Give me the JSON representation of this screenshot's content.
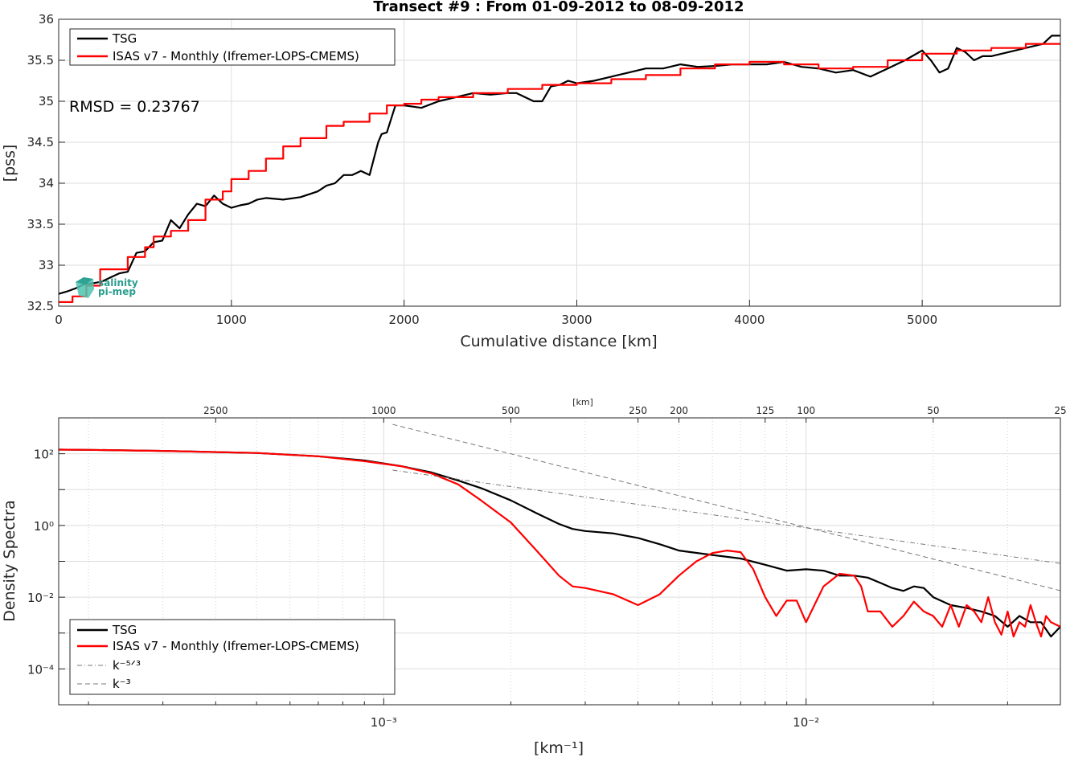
{
  "chart_data": [
    {
      "type": "line",
      "title": "Transect #9 : From 01-09-2012 to 08-09-2012",
      "xlabel": "Cumulative distance [km]",
      "ylabel": "[pss]",
      "xlim": [
        0,
        5800
      ],
      "ylim": [
        32.5,
        36
      ],
      "xticks": [
        0,
        1000,
        2000,
        3000,
        4000,
        5000
      ],
      "yticks": [
        32.5,
        33,
        33.5,
        34,
        34.5,
        35,
        35.5,
        36
      ],
      "grid": true,
      "legend_position": "top-left",
      "annotation": "RMSD = 0.23767",
      "logo_text": [
        "salinity",
        "pi-mep"
      ],
      "series": [
        {
          "name": "TSG",
          "color": "#000000",
          "x": [
            0,
            50,
            100,
            150,
            200,
            250,
            300,
            350,
            400,
            450,
            500,
            550,
            600,
            650,
            700,
            750,
            800,
            850,
            900,
            950,
            1000,
            1050,
            1100,
            1150,
            1200,
            1300,
            1400,
            1500,
            1550,
            1600,
            1650,
            1700,
            1750,
            1800,
            1850,
            1870,
            1900,
            1950,
            2000,
            2100,
            2200,
            2300,
            2400,
            2500,
            2600,
            2650,
            2700,
            2750,
            2800,
            2850,
            2900,
            2950,
            3000,
            3100,
            3200,
            3300,
            3400,
            3500,
            3600,
            3700,
            3800,
            3900,
            4000,
            4100,
            4200,
            4300,
            4400,
            4500,
            4600,
            4700,
            4800,
            4900,
            5000,
            5050,
            5100,
            5150,
            5200,
            5250,
            5300,
            5350,
            5400,
            5500,
            5600,
            5700,
            5750,
            5800
          ],
          "y": [
            32.65,
            32.68,
            32.72,
            32.77,
            32.78,
            32.8,
            32.85,
            32.9,
            32.92,
            33.15,
            33.17,
            33.28,
            33.3,
            33.55,
            33.45,
            33.62,
            33.75,
            33.72,
            33.85,
            33.75,
            33.7,
            33.73,
            33.75,
            33.8,
            33.82,
            33.8,
            33.83,
            33.9,
            33.97,
            34.0,
            34.1,
            34.1,
            34.15,
            34.1,
            34.5,
            34.6,
            34.62,
            34.95,
            34.95,
            34.92,
            35.0,
            35.05,
            35.1,
            35.08,
            35.1,
            35.1,
            35.05,
            35.0,
            35.0,
            35.18,
            35.2,
            35.25,
            35.22,
            35.25,
            35.3,
            35.35,
            35.4,
            35.4,
            35.45,
            35.42,
            35.43,
            35.45,
            35.45,
            35.45,
            35.48,
            35.42,
            35.4,
            35.35,
            35.38,
            35.3,
            35.4,
            35.5,
            35.62,
            35.5,
            35.35,
            35.4,
            35.65,
            35.6,
            35.5,
            35.55,
            35.55,
            35.6,
            35.65,
            35.7,
            35.8,
            35.8
          ]
        },
        {
          "name": "ISAS v7 - Monthly (Ifremer-LOPS-CMEMS)",
          "color": "#ff0000",
          "x": [
            0,
            80,
            80,
            160,
            160,
            240,
            240,
            400,
            400,
            500,
            500,
            550,
            550,
            650,
            650,
            750,
            750,
            850,
            850,
            950,
            950,
            1000,
            1000,
            1100,
            1100,
            1200,
            1200,
            1300,
            1300,
            1400,
            1400,
            1550,
            1550,
            1650,
            1650,
            1800,
            1800,
            1900,
            1900,
            2000,
            2000,
            2100,
            2100,
            2200,
            2200,
            2400,
            2400,
            2600,
            2600,
            2800,
            2800,
            3000,
            3000,
            3200,
            3200,
            3400,
            3400,
            3600,
            3600,
            3800,
            3800,
            4000,
            4000,
            4200,
            4200,
            4400,
            4400,
            4600,
            4600,
            4800,
            4800,
            5000,
            5000,
            5200,
            5200,
            5400,
            5400,
            5600,
            5600,
            5800
          ],
          "y": [
            32.55,
            32.55,
            32.62,
            32.62,
            32.75,
            32.75,
            32.95,
            32.95,
            33.1,
            33.1,
            33.22,
            33.22,
            33.35,
            33.35,
            33.42,
            33.42,
            33.55,
            33.55,
            33.8,
            33.8,
            33.9,
            33.9,
            34.05,
            34.05,
            34.15,
            34.15,
            34.3,
            34.3,
            34.45,
            34.45,
            34.55,
            34.55,
            34.7,
            34.7,
            34.75,
            34.75,
            34.85,
            34.85,
            34.95,
            34.95,
            34.97,
            34.97,
            35.02,
            35.02,
            35.05,
            35.05,
            35.1,
            35.1,
            35.15,
            35.15,
            35.2,
            35.2,
            35.22,
            35.22,
            35.27,
            35.27,
            35.32,
            35.32,
            35.4,
            35.4,
            35.45,
            35.45,
            35.48,
            35.48,
            35.45,
            35.45,
            35.4,
            35.4,
            35.42,
            35.42,
            35.5,
            35.5,
            35.58,
            35.58,
            35.62,
            35.62,
            35.65,
            35.65,
            35.7,
            35.7
          ]
        }
      ]
    },
    {
      "type": "line",
      "xlabel": "[km⁻¹]",
      "ylabel": "Density Spectra",
      "top_axis_label": "[km]",
      "x_scale": "log",
      "y_scale": "log",
      "xlim": [
        0.00017,
        0.04
      ],
      "ylim": [
        1e-05,
        1000
      ],
      "xticks_major": [
        "10⁻³",
        "10⁻²"
      ],
      "yticks": [
        "10⁻⁴",
        "10⁻²",
        "10⁰",
        "10²"
      ],
      "top_ticks": [
        2500,
        1000,
        500,
        250,
        200,
        125,
        100,
        50,
        25
      ],
      "grid": true,
      "legend_position": "bottom-left",
      "series": [
        {
          "name": "TSG",
          "color": "#000000",
          "x": [
            0.00017,
            0.0002,
            0.0003,
            0.0005,
            0.0007,
            0.0009,
            0.0011,
            0.0013,
            0.0015,
            0.0017,
            0.002,
            0.0023,
            0.0026,
            0.0028,
            0.003,
            0.0035,
            0.004,
            0.0045,
            0.005,
            0.006,
            0.007,
            0.008,
            0.009,
            0.01,
            0.011,
            0.012,
            0.013,
            0.014,
            0.015,
            0.016,
            0.017,
            0.018,
            0.019,
            0.02,
            0.022,
            0.024,
            0.026,
            0.028,
            0.03,
            0.032,
            0.034,
            0.036,
            0.038,
            0.04
          ],
          "y": [
            130,
            128,
            120,
            105,
            85,
            65,
            45,
            30,
            18,
            11,
            5,
            2.2,
            1.1,
            0.8,
            0.7,
            0.6,
            0.45,
            0.3,
            0.2,
            0.15,
            0.12,
            0.08,
            0.055,
            0.06,
            0.055,
            0.04,
            0.04,
            0.035,
            0.025,
            0.018,
            0.015,
            0.02,
            0.018,
            0.01,
            0.006,
            0.005,
            0.004,
            0.003,
            0.0015,
            0.003,
            0.002,
            0.002,
            0.0008,
            0.0015
          ]
        },
        {
          "name": "ISAS v7 - Monthly (Ifremer-LOPS-CMEMS)",
          "color": "#ff0000",
          "x": [
            0.00017,
            0.0002,
            0.0003,
            0.0005,
            0.0007,
            0.0009,
            0.0011,
            0.0013,
            0.0015,
            0.0017,
            0.002,
            0.0023,
            0.0026,
            0.0028,
            0.003,
            0.0035,
            0.004,
            0.0045,
            0.005,
            0.0055,
            0.006,
            0.0065,
            0.007,
            0.0075,
            0.008,
            0.0085,
            0.009,
            0.0095,
            0.01,
            0.011,
            0.012,
            0.013,
            0.0135,
            0.014,
            0.015,
            0.016,
            0.017,
            0.018,
            0.019,
            0.02,
            0.021,
            0.022,
            0.023,
            0.024,
            0.025,
            0.026,
            0.027,
            0.028,
            0.029,
            0.03,
            0.031,
            0.032,
            0.033,
            0.034,
            0.035,
            0.036,
            0.037,
            0.038,
            0.04
          ],
          "y": [
            130,
            128,
            120,
            105,
            85,
            62,
            45,
            28,
            14,
            5,
            1.2,
            0.2,
            0.04,
            0.02,
            0.018,
            0.012,
            0.006,
            0.012,
            0.04,
            0.1,
            0.17,
            0.2,
            0.18,
            0.06,
            0.01,
            0.003,
            0.008,
            0.008,
            0.002,
            0.02,
            0.045,
            0.04,
            0.02,
            0.004,
            0.004,
            0.0015,
            0.003,
            0.0075,
            0.004,
            0.003,
            0.0015,
            0.006,
            0.0015,
            0.006,
            0.004,
            0.002,
            0.01,
            0.002,
            0.0009,
            0.004,
            0.0008,
            0.002,
            0.0015,
            0.006,
            0.002,
            0.0008,
            0.003,
            0.002,
            0.0015
          ]
        },
        {
          "name": "k⁻⁵ᐟ³",
          "color": "#777777",
          "style": "dash-dot",
          "x": [
            0.00105,
            0.04
          ],
          "y": [
            35,
            0.0875
          ]
        },
        {
          "name": "k⁻³",
          "color": "#777777",
          "style": "dashed",
          "x": [
            0.00105,
            0.04
          ],
          "y": [
            660,
            0.0152
          ]
        }
      ]
    }
  ]
}
